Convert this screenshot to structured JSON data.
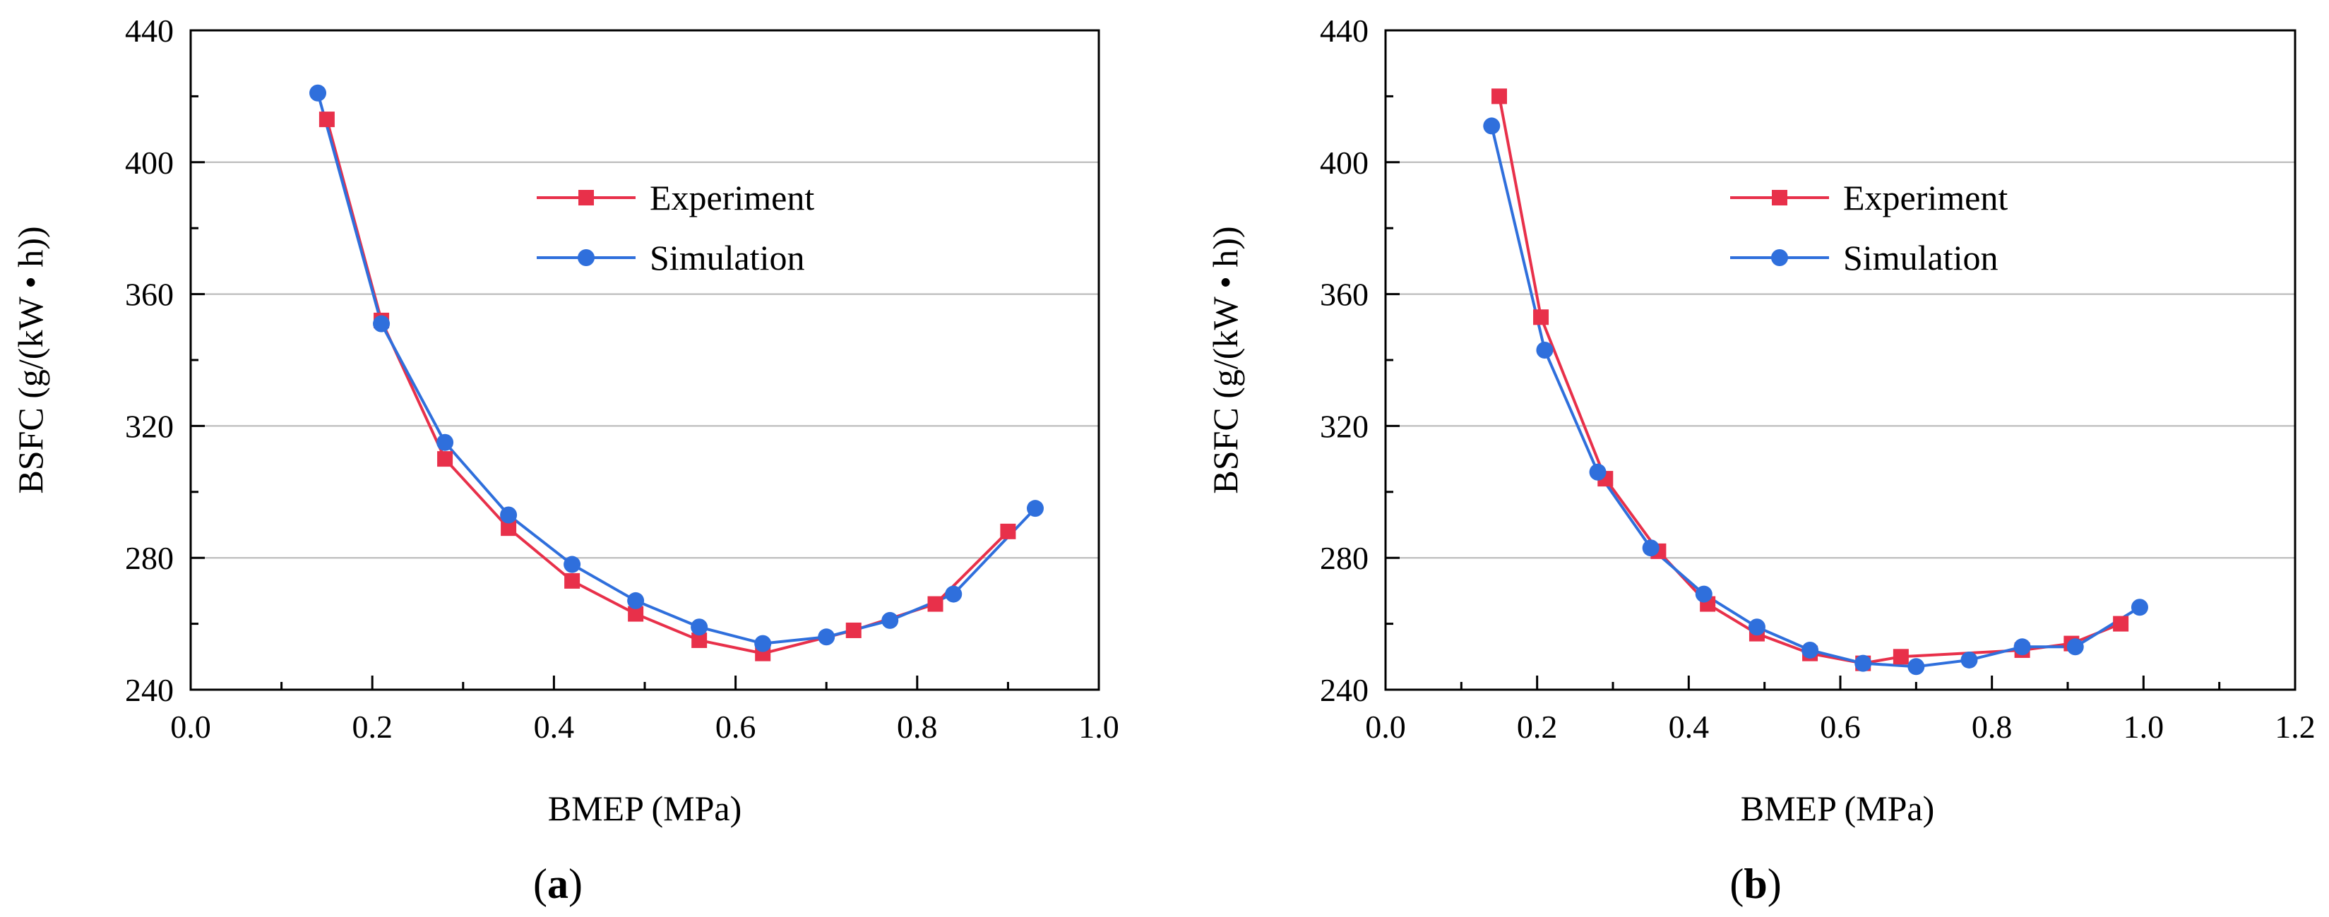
{
  "colors": {
    "experiment": "#e8304a",
    "simulation": "#2f6fdc",
    "grid": "#b5b5b5",
    "axis": "#000000"
  },
  "chart_data": [
    {
      "type": "line",
      "panel_label": "(a)",
      "panel_label_parts": [
        "(",
        "a",
        ")"
      ],
      "xlabel": "BMEP (MPa)",
      "ylabel": "BSFC (g/(kW • h))",
      "xlim": [
        0.0,
        1.0
      ],
      "ylim": [
        240,
        440
      ],
      "xticks": [
        0.0,
        0.2,
        0.4,
        0.6,
        0.8,
        1.0
      ],
      "xtick_labels": [
        "0.0",
        "0.2",
        "0.4",
        "0.6",
        "0.8",
        "1.0"
      ],
      "yticks": [
        240,
        280,
        320,
        360,
        400,
        440
      ],
      "ytick_labels": [
        "240",
        "280",
        "320",
        "360",
        "400",
        "440"
      ],
      "grid": "horizontal",
      "legend_position": "upper-center",
      "series": [
        {
          "name": "Experiment",
          "marker": "square",
          "x": [
            0.15,
            0.21,
            0.28,
            0.35,
            0.42,
            0.49,
            0.56,
            0.63,
            0.73,
            0.82,
            0.9
          ],
          "y": [
            413,
            352,
            310,
            289,
            273,
            263,
            255,
            251,
            258,
            266,
            288
          ]
        },
        {
          "name": "Simulation",
          "marker": "circle",
          "x": [
            0.14,
            0.21,
            0.28,
            0.35,
            0.42,
            0.49,
            0.56,
            0.63,
            0.7,
            0.77,
            0.84,
            0.93
          ],
          "y": [
            421,
            351,
            315,
            293,
            278,
            267,
            259,
            254,
            256,
            261,
            269,
            295
          ]
        }
      ]
    },
    {
      "type": "line",
      "panel_label": "(b)",
      "panel_label_parts": [
        "(",
        "b",
        ")"
      ],
      "xlabel": "BMEP (MPa)",
      "ylabel": "BSFC (g/(kW • h))",
      "xlim": [
        0.0,
        1.2
      ],
      "ylim": [
        240,
        440
      ],
      "xticks": [
        0.0,
        0.2,
        0.4,
        0.6,
        0.8,
        1.0,
        1.2
      ],
      "xtick_labels": [
        "0.0",
        "0.2",
        "0.4",
        "0.6",
        "0.8",
        "1.0",
        "1.2"
      ],
      "yticks": [
        240,
        280,
        320,
        360,
        400,
        440
      ],
      "ytick_labels": [
        "240",
        "280",
        "320",
        "360",
        "400",
        "440"
      ],
      "grid": "horizontal",
      "legend_position": "upper-center",
      "series": [
        {
          "name": "Experiment",
          "marker": "square",
          "x": [
            0.15,
            0.205,
            0.29,
            0.36,
            0.425,
            0.49,
            0.56,
            0.63,
            0.68,
            0.84,
            0.905,
            0.97
          ],
          "y": [
            420,
            353,
            304,
            282,
            266,
            257,
            251,
            248,
            250,
            252,
            254,
            260
          ]
        },
        {
          "name": "Simulation",
          "marker": "circle",
          "x": [
            0.14,
            0.21,
            0.28,
            0.35,
            0.42,
            0.49,
            0.56,
            0.63,
            0.7,
            0.77,
            0.84,
            0.91,
            0.995
          ],
          "y": [
            411,
            343,
            306,
            283,
            269,
            259,
            252,
            248,
            247,
            249,
            253,
            253,
            265
          ]
        }
      ]
    }
  ]
}
